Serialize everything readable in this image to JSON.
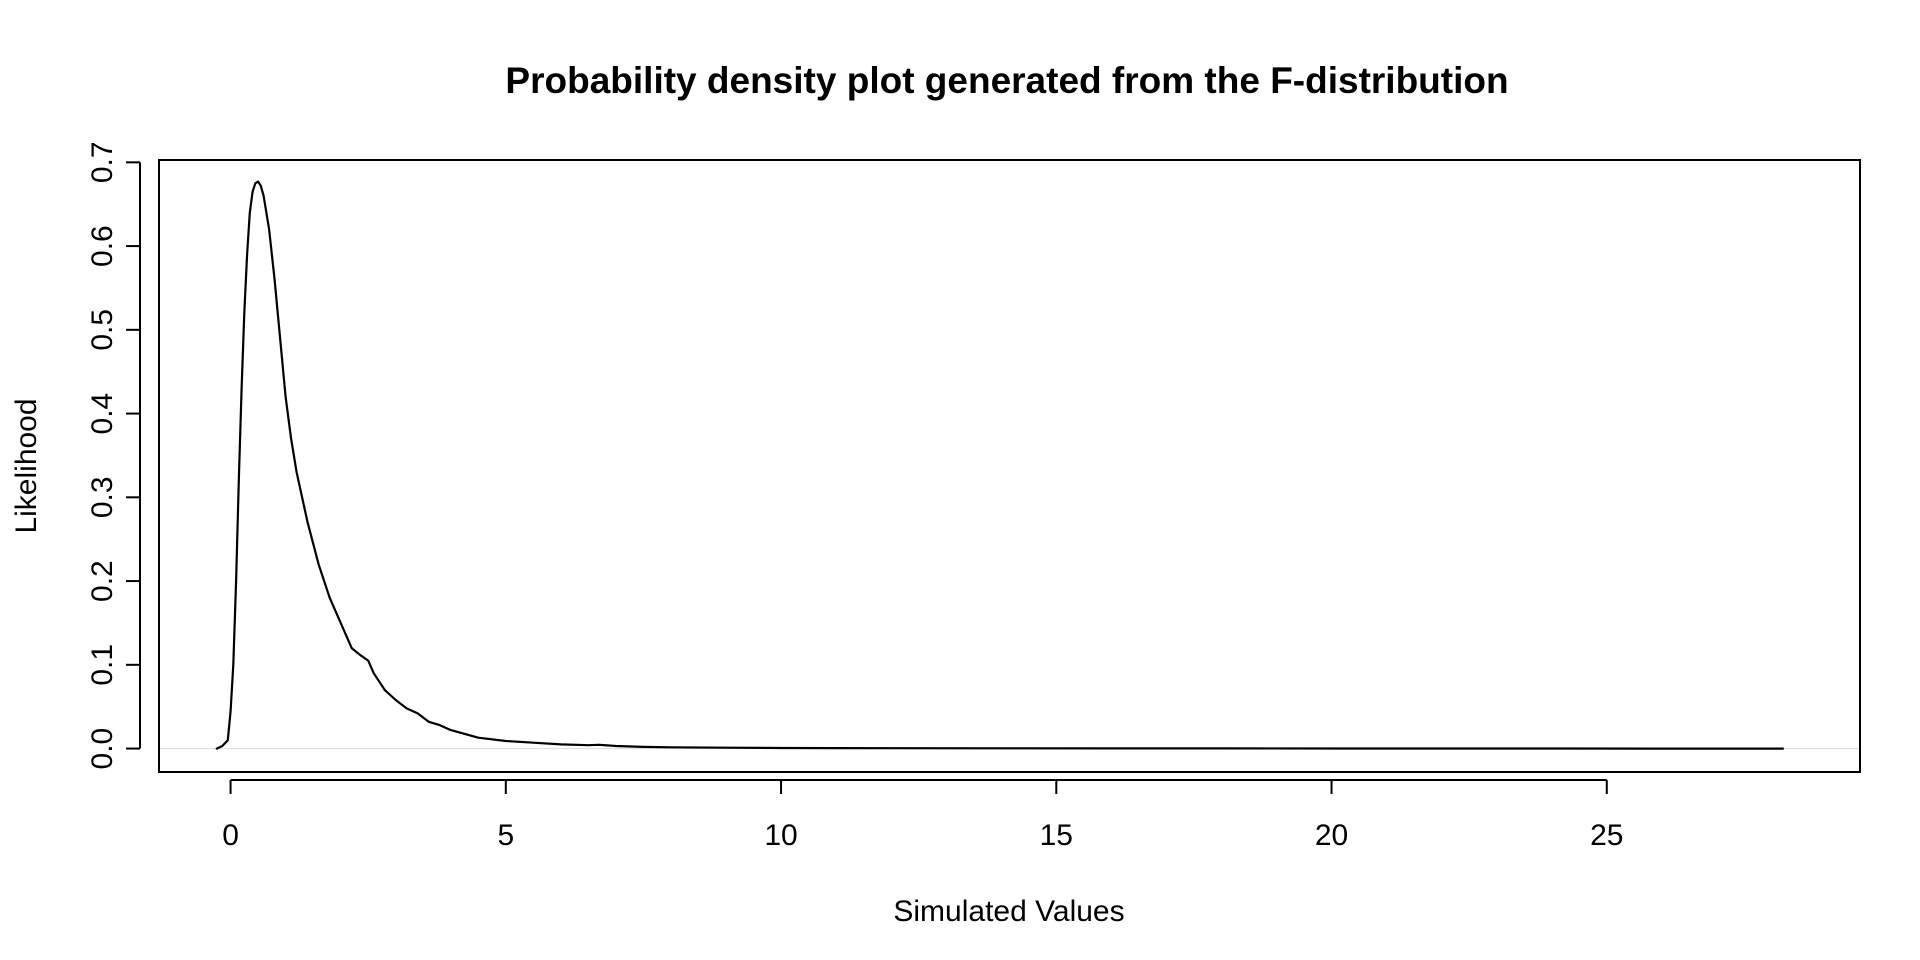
{
  "chart_data": {
    "type": "line",
    "title": "Probability density plot generated from the F-distribution",
    "xlabel": "Simulated Values",
    "ylabel": "Likelihood",
    "xlim": [
      -1.3,
      29.6
    ],
    "ylim": [
      -0.028,
      0.7028
    ],
    "x_ticks": [
      0,
      5,
      10,
      15,
      20,
      25
    ],
    "x_tick_labels": [
      "0",
      "5",
      "10",
      "15",
      "20",
      "25"
    ],
    "y_ticks": [
      0.0,
      0.1,
      0.2,
      0.3,
      0.4,
      0.5,
      0.6,
      0.7
    ],
    "y_tick_labels": [
      "0.0",
      "0.1",
      "0.2",
      "0.3",
      "0.4",
      "0.5",
      "0.6",
      "0.7"
    ],
    "baseline": {
      "y": 0,
      "color": "#dddddd"
    },
    "grid": false,
    "line_color": "#000000",
    "series": [
      {
        "x": [
          -0.25,
          -0.15,
          -0.05,
          0.0,
          0.05,
          0.1,
          0.15,
          0.2,
          0.25,
          0.3,
          0.35,
          0.4,
          0.45,
          0.5,
          0.55,
          0.6,
          0.7,
          0.8,
          0.9,
          1.0,
          1.1,
          1.2,
          1.4,
          1.6,
          1.8,
          2.0,
          2.2,
          2.35,
          2.5,
          2.6,
          2.8,
          3.0,
          3.2,
          3.4,
          3.6,
          3.8,
          4.0,
          4.5,
          5.0,
          5.5,
          6.0,
          6.5,
          6.7,
          7.0,
          7.5,
          8.0,
          9.0,
          10.0,
          11.0,
          12.0,
          14.0,
          16.0,
          18.0,
          20.0,
          22.0,
          24.0,
          26.0,
          28.2
        ],
        "y": [
          0.0,
          0.003,
          0.01,
          0.045,
          0.1,
          0.2,
          0.32,
          0.43,
          0.52,
          0.59,
          0.64,
          0.665,
          0.675,
          0.677,
          0.672,
          0.66,
          0.62,
          0.56,
          0.49,
          0.42,
          0.37,
          0.33,
          0.27,
          0.22,
          0.18,
          0.15,
          0.12,
          0.112,
          0.105,
          0.09,
          0.07,
          0.058,
          0.048,
          0.042,
          0.032,
          0.028,
          0.022,
          0.013,
          0.009,
          0.007,
          0.005,
          0.004,
          0.0045,
          0.003,
          0.002,
          0.0015,
          0.001,
          0.0007,
          0.0005,
          0.0004,
          0.0003,
          0.0002,
          0.0002,
          0.0001,
          0.0001,
          0.0001,
          0.0,
          0.0
        ]
      }
    ]
  }
}
